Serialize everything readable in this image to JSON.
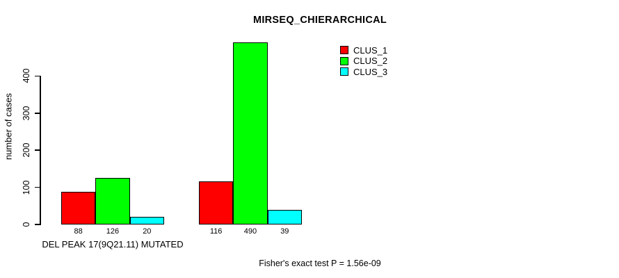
{
  "title": "MIRSEQ_CHIERARCHICAL",
  "chart_data": {
    "type": "bar",
    "title": "MIRSEQ_CHIERARCHICAL",
    "xlabel": "",
    "ylabel": "number of cases",
    "ylim": [
      0,
      400
    ],
    "yticks": [
      "0",
      "100",
      "200",
      "300",
      "400"
    ],
    "grid": false,
    "legend_position": "top-right",
    "categories": [
      "DEL PEAK 17(9Q21.11) MUTATED",
      ""
    ],
    "series": [
      {
        "name": "CLUS_1",
        "color": "#ff0000",
        "values": [
          88,
          116
        ]
      },
      {
        "name": "CLUS_2",
        "color": "#00ff00",
        "values": [
          126,
          490
        ]
      },
      {
        "name": "CLUS_3",
        "color": "#00ffff",
        "values": [
          20,
          39
        ]
      }
    ],
    "bar_value_labels": [
      [
        88,
        126,
        20
      ],
      [
        116,
        490,
        39
      ]
    ],
    "annotation": "Fisher's exact test P = 1.56e-09"
  }
}
